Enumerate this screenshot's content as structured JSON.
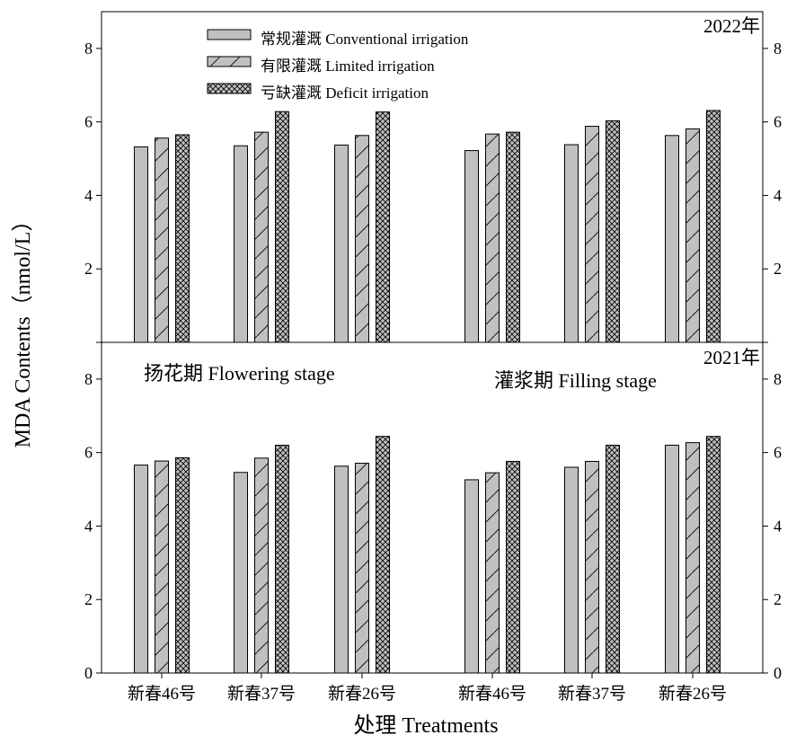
{
  "ylabel": "MDA Contents（nmol/L）",
  "xlabel": "处理 Treatments",
  "legend": [
    {
      "label": "常规灌溉 Conventional irrigation",
      "pattern": "solid"
    },
    {
      "label": "有限灌溉 Limited irrigation",
      "pattern": "hatch"
    },
    {
      "label": "亏缺灌溉 Deficit irrigation",
      "pattern": "crosshatch"
    }
  ],
  "stage_labels": [
    "扬花期 Flowering stage",
    "灌浆期 Filling stage"
  ],
  "colors": {
    "bar_fill": "#c0c0c0",
    "stroke": "#000000",
    "background": "#ffffff"
  },
  "chart_data": {
    "type": "bar",
    "categories": [
      "新春46号",
      "新春37号",
      "新春26号",
      "新春46号",
      "新春37号",
      "新春26号"
    ],
    "groups": [
      "扬花期 Flowering stage",
      "灌浆期 Filling stage"
    ],
    "ylim": [
      0,
      9
    ],
    "yticks": [
      0,
      2,
      4,
      6,
      8
    ],
    "panels": [
      {
        "title": "2022年",
        "series": [
          {
            "name": "常规灌溉 Conventional irrigation",
            "values": [
              5.32,
              5.35,
              5.37,
              5.22,
              5.38,
              5.63
            ]
          },
          {
            "name": "有限灌溉 Limited irrigation",
            "values": [
              5.56,
              5.72,
              5.63,
              5.67,
              5.88,
              5.81
            ]
          },
          {
            "name": "亏缺灌溉 Deficit irrigation",
            "values": [
              5.65,
              6.28,
              6.27,
              5.72,
              6.03,
              6.31
            ]
          }
        ]
      },
      {
        "title": "2021年",
        "series": [
          {
            "name": "常规灌溉 Conventional irrigation",
            "values": [
              5.66,
              5.46,
              5.63,
              5.26,
              5.6,
              6.2
            ]
          },
          {
            "name": "有限灌溉 Limited irrigation",
            "values": [
              5.77,
              5.85,
              5.71,
              5.45,
              5.76,
              6.27
            ]
          },
          {
            "name": "亏缺灌溉 Deficit irrigation",
            "values": [
              5.86,
              6.2,
              6.44,
              5.76,
              6.2,
              6.44
            ]
          }
        ]
      }
    ]
  }
}
